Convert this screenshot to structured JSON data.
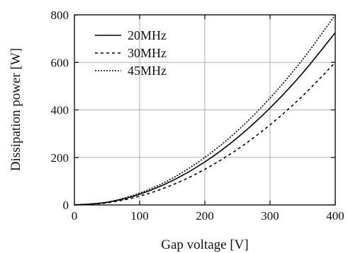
{
  "chart_data": {
    "type": "line",
    "xlabel": "Gap voltage [V]",
    "ylabel": "Dissipation power [W]",
    "xlim": [
      0,
      400
    ],
    "ylim": [
      0,
      800
    ],
    "x_ticks": [
      "0",
      "100",
      "200",
      "300",
      "400"
    ],
    "y_ticks": [
      "0",
      "200",
      "400",
      "600",
      "800"
    ],
    "grid": true,
    "legend_position": "top-left",
    "x": [
      0,
      50,
      100,
      150,
      200,
      250,
      300,
      350,
      400
    ],
    "series": [
      {
        "name": "20MHz",
        "style": "solid",
        "values": [
          0,
          11,
          45,
          102,
          181,
          283,
          408,
          555,
          725
        ]
      },
      {
        "name": "30MHz",
        "style": "dashed",
        "values": [
          0,
          9,
          37,
          84,
          150,
          234,
          337,
          459,
          600
        ]
      },
      {
        "name": "45MHz",
        "style": "dotted",
        "values": [
          0,
          12,
          50,
          112,
          200,
          312,
          450,
          612,
          800
        ]
      }
    ]
  },
  "colors": {
    "line": "#000000",
    "grid": "#999999"
  }
}
